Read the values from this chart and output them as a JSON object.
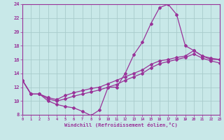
{
  "xlabel": "Windchill (Refroidissement éolien,°C)",
  "xlim": [
    0,
    23
  ],
  "ylim": [
    8,
    24
  ],
  "xticks": [
    0,
    1,
    2,
    3,
    4,
    5,
    6,
    7,
    8,
    9,
    10,
    11,
    12,
    13,
    14,
    15,
    16,
    17,
    18,
    19,
    20,
    21,
    22,
    23
  ],
  "yticks": [
    8,
    10,
    12,
    14,
    16,
    18,
    20,
    22,
    24
  ],
  "bg_color": "#c8e8e8",
  "grid_color": "#a8cccc",
  "line_color": "#993399",
  "zigzag_x": [
    0,
    1,
    2,
    3,
    4,
    5,
    6,
    7,
    8,
    9,
    10,
    11,
    12,
    13,
    14,
    15,
    16,
    17,
    18,
    19,
    20,
    21,
    22,
    23
  ],
  "zigzag_y": [
    13.0,
    11.0,
    11.0,
    10.0,
    9.5,
    9.2,
    9.0,
    8.5,
    7.9,
    8.7,
    12.0,
    12.0,
    14.0,
    16.7,
    18.5,
    21.2,
    23.5,
    24.0,
    22.5,
    18.0,
    17.3,
    16.5,
    16.0,
    16.0
  ],
  "upper_x": [
    0,
    1,
    2,
    3,
    4,
    5,
    6,
    7,
    8,
    9,
    10,
    11,
    12,
    13,
    14,
    15,
    16,
    17,
    18,
    19,
    20,
    21,
    22,
    23
  ],
  "upper_y": [
    13.0,
    11.0,
    11.0,
    10.5,
    10.2,
    10.8,
    11.2,
    11.5,
    11.8,
    12.0,
    12.5,
    13.0,
    13.5,
    14.0,
    14.5,
    15.3,
    15.8,
    16.0,
    16.3,
    16.5,
    17.3,
    16.5,
    16.2,
    16.0
  ],
  "lower_x": [
    0,
    1,
    2,
    3,
    4,
    5,
    6,
    7,
    8,
    9,
    10,
    11,
    12,
    13,
    14,
    15,
    16,
    17,
    18,
    19,
    20,
    21,
    22,
    23
  ],
  "lower_y": [
    13.0,
    11.0,
    11.0,
    10.3,
    10.0,
    10.3,
    10.7,
    11.0,
    11.3,
    11.6,
    12.0,
    12.4,
    13.0,
    13.5,
    14.0,
    14.8,
    15.4,
    15.7,
    16.0,
    16.3,
    16.8,
    16.2,
    15.8,
    15.5
  ]
}
